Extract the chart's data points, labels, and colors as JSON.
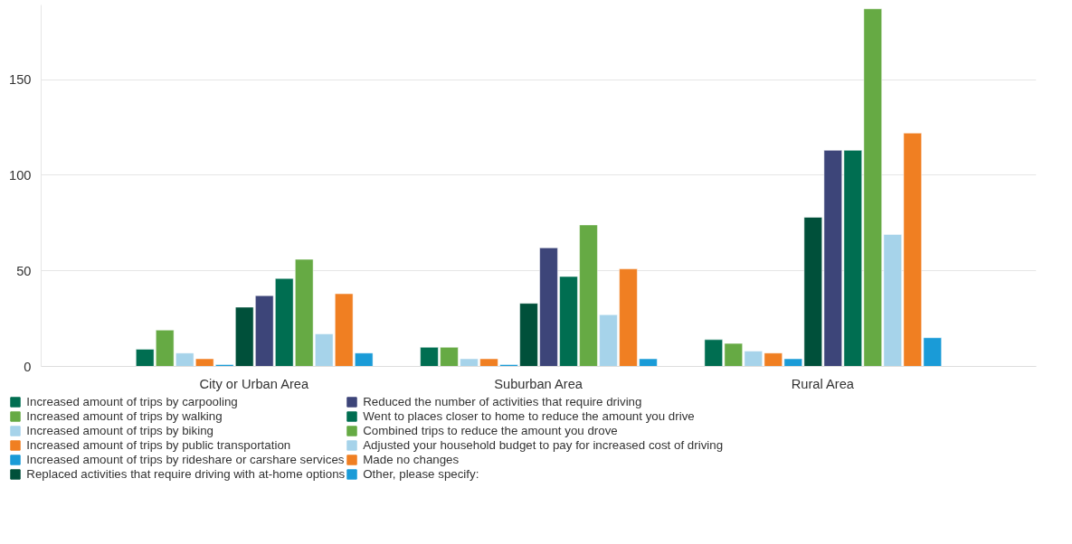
{
  "chart_data": {
    "type": "bar",
    "categories": [
      "City or Urban Area",
      "Suburban Area",
      "Rural Area"
    ],
    "ylim": [
      0,
      189
    ],
    "yticks": [
      0,
      50,
      100,
      150
    ],
    "grid": "y",
    "legend": "bottom",
    "series": [
      {
        "name": "Increased amount of trips by carpooling",
        "color": "#006e51",
        "values": [
          9,
          10,
          14
        ]
      },
      {
        "name": "Increased amount of trips by walking",
        "color": "#66aa44",
        "values": [
          19,
          10,
          12
        ]
      },
      {
        "name": "Increased amount of trips by biking",
        "color": "#a6d3ea",
        "values": [
          7,
          4,
          8
        ]
      },
      {
        "name": "Increased amount of trips by public transportation",
        "color": "#f07f22",
        "values": [
          4,
          4,
          7
        ]
      },
      {
        "name": "Increased amount of trips by rideshare or carshare services",
        "color": "#1a9bd7",
        "values": [
          1,
          1,
          4
        ]
      },
      {
        "name": "Replaced activities that require driving with at-home options",
        "color": "#00503a",
        "values": [
          31,
          33,
          78
        ]
      },
      {
        "name": "Reduced the number of activities that require driving",
        "color": "#3d4579",
        "values": [
          37,
          62,
          113
        ]
      },
      {
        "name": "Went to places closer to home to reduce the amount you drive",
        "color": "#006e51",
        "values": [
          46,
          47,
          113
        ]
      },
      {
        "name": "Combined trips to reduce the amount you drove",
        "color": "#66aa44",
        "values": [
          56,
          74,
          187
        ]
      },
      {
        "name": "Adjusted your household budget to pay for increased cost of driving",
        "color": "#a6d3ea",
        "values": [
          17,
          27,
          69
        ]
      },
      {
        "name": "Made no changes",
        "color": "#f07f22",
        "values": [
          38,
          51,
          122
        ]
      },
      {
        "name": "Other, please specify:",
        "color": "#1a9bd7",
        "values": [
          7,
          4,
          15
        ]
      }
    ]
  }
}
